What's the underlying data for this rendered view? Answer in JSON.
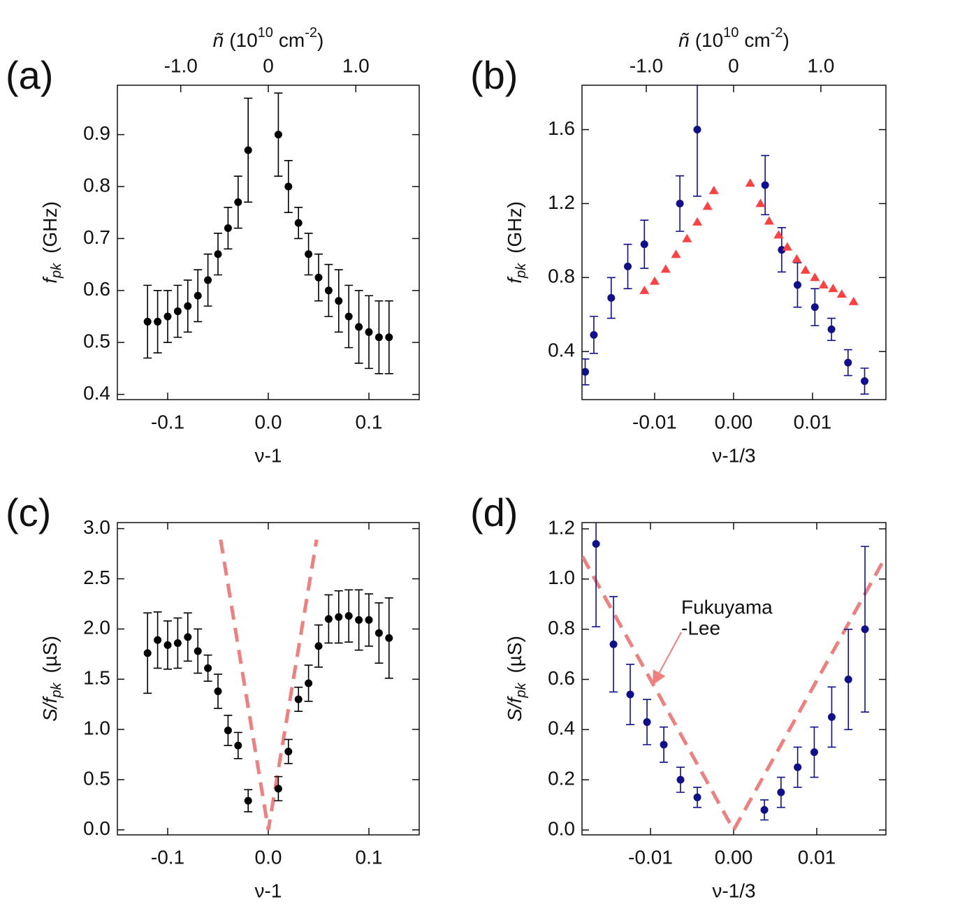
{
  "chart_data": [
    {
      "type": "scatter",
      "label": "(a)",
      "xlabel": "ν-1",
      "ylabel": {
        "main": "f",
        "sub": "pk",
        "unit": "(GHz)"
      },
      "x2label": {
        "symbol": "ñ",
        "open": "(10",
        "exp": "10",
        "unit": "cm",
        "unit_exp": "-2",
        "close": ")"
      },
      "xlim": [
        -0.15,
        0.15
      ],
      "ylim": [
        0.39,
        0.995
      ],
      "xticks": [
        -0.1,
        {
          "value": 0,
          "label": "0.0"
        },
        0.1
      ],
      "yticks": [
        0.4,
        0.5,
        0.6,
        0.7,
        0.8,
        0.9
      ],
      "x2lim": [
        -1.724,
        1.724
      ],
      "x2ticks": [
        {
          "value": -1,
          "label": "-1.0"
        },
        0,
        {
          "value": 1,
          "label": "1.0"
        }
      ],
      "series": [
        {
          "marker": "circle",
          "color": "#000000",
          "x": [
            -0.12,
            -0.11,
            -0.1,
            -0.09,
            -0.08,
            -0.07,
            -0.06,
            -0.05,
            -0.04,
            -0.03,
            -0.02,
            0.01,
            0.02,
            0.03,
            0.04,
            0.05,
            0.06,
            0.07,
            0.08,
            0.09,
            0.1,
            0.11,
            0.12
          ],
          "values": [
            0.54,
            0.54,
            0.55,
            0.56,
            0.57,
            0.59,
            0.62,
            0.67,
            0.72,
            0.77,
            0.87,
            0.9,
            0.8,
            0.73,
            0.67,
            0.625,
            0.6,
            0.58,
            0.55,
            0.53,
            0.52,
            0.51,
            0.51
          ],
          "errors": [
            0.07,
            0.06,
            0.05,
            0.05,
            0.05,
            0.05,
            0.05,
            0.04,
            0.04,
            0.05,
            0.1,
            0.08,
            0.05,
            0.03,
            0.04,
            0.045,
            0.05,
            0.06,
            0.06,
            0.07,
            0.07,
            0.07,
            0.07
          ]
        }
      ]
    },
    {
      "type": "scatter",
      "label": "(b)",
      "xlabel": "ν-1/3",
      "ylabel": {
        "main": "f",
        "sub": "pk",
        "unit": "(GHz)"
      },
      "x2label": {
        "symbol": "ñ",
        "open": "(10",
        "exp": "10",
        "unit": "cm",
        "unit_exp": "-2",
        "close": ")"
      },
      "xlim": [
        -0.0192,
        0.0193
      ],
      "ylim": [
        0.14,
        1.84
      ],
      "xticks": [
        -0.01,
        {
          "value": 0,
          "label": "0.00"
        },
        0.01
      ],
      "yticks": [
        0.4,
        0.8,
        1.2,
        1.6
      ],
      "x2lim": [
        -1.736,
        1.745
      ],
      "x2ticks": [
        {
          "value": -1,
          "label": "-1.0"
        },
        0,
        {
          "value": 1,
          "label": "1.0"
        }
      ],
      "series": [
        {
          "marker": "circle",
          "color": "#10108c",
          "x": [
            -0.0188,
            -0.0177,
            -0.0155,
            -0.0134,
            -0.0113,
            -0.0068,
            -0.0046,
            0.004,
            0.0061,
            0.0081,
            0.0103,
            0.0124,
            0.0145,
            0.0166
          ],
          "values": [
            0.29,
            0.49,
            0.69,
            0.86,
            0.98,
            1.2,
            1.6,
            1.3,
            0.95,
            0.76,
            0.64,
            0.52,
            0.34,
            0.24
          ],
          "errors": [
            0.07,
            0.1,
            0.11,
            0.12,
            0.13,
            0.15,
            0.36,
            0.16,
            0.12,
            0.12,
            0.1,
            0.06,
            0.07,
            0.07
          ]
        },
        {
          "marker": "triangle",
          "color": "#ff4040",
          "x": [
            -0.0113,
            -0.01,
            -0.0086,
            -0.0073,
            -0.0059,
            -0.0046,
            -0.0033,
            -0.0025,
            0.0021,
            0.0034,
            0.0045,
            0.0057,
            0.0068,
            0.008,
            0.0091,
            0.0103,
            0.0114,
            0.0126,
            0.0137,
            0.0152
          ],
          "values": [
            0.73,
            0.78,
            0.845,
            0.925,
            1.01,
            1.1,
            1.185,
            1.27,
            1.31,
            1.2,
            1.105,
            1.03,
            0.965,
            0.9,
            0.84,
            0.8,
            0.76,
            0.74,
            0.71,
            0.67
          ]
        }
      ]
    },
    {
      "type": "scatter",
      "label": "(c)",
      "xlabel": "ν-1",
      "ylabel": {
        "main": "S/f",
        "sub": "pk",
        "unit": "(µS)"
      },
      "xlim": [
        -0.15,
        0.15
      ],
      "ylim": [
        -0.05,
        3.06
      ],
      "xticks": [
        -0.1,
        {
          "value": 0,
          "label": "0.0"
        },
        0.1
      ],
      "yticks": [
        {
          "value": 0,
          "label": "0.0"
        },
        0.5,
        {
          "value": 1,
          "label": "1.0"
        },
        1.5,
        {
          "value": 2,
          "label": "2.0"
        },
        2.5,
        {
          "value": 3,
          "label": "3.0"
        }
      ],
      "series": [
        {
          "marker": "line",
          "color": "#f08080",
          "x": [
            -0.0474,
            0,
            0.048
          ],
          "values": [
            2.89,
            0,
            2.89
          ]
        },
        {
          "marker": "circle",
          "color": "#000000",
          "x": [
            -0.12,
            -0.11,
            -0.1,
            -0.09,
            -0.08,
            -0.07,
            -0.06,
            -0.05,
            -0.04,
            -0.03,
            -0.02,
            0.01,
            0.02,
            0.03,
            0.04,
            0.05,
            0.06,
            0.07,
            0.08,
            0.09,
            0.1,
            0.11,
            0.12
          ],
          "values": [
            1.76,
            1.89,
            1.84,
            1.86,
            1.92,
            1.78,
            1.61,
            1.38,
            0.99,
            0.84,
            0.29,
            0.41,
            0.78,
            1.3,
            1.46,
            1.83,
            2.1,
            2.12,
            2.13,
            2.09,
            2.09,
            1.96,
            1.91
          ],
          "errors": [
            0.4,
            0.28,
            0.24,
            0.25,
            0.24,
            0.22,
            0.13,
            0.17,
            0.15,
            0.13,
            0.11,
            0.12,
            0.12,
            0.12,
            0.18,
            0.21,
            0.24,
            0.26,
            0.26,
            0.3,
            0.26,
            0.3,
            0.4
          ]
        }
      ]
    },
    {
      "type": "scatter",
      "label": "(d)",
      "xlabel": "ν-1/3",
      "ylabel": {
        "main": "S/f",
        "sub": "pk",
        "unit": "(µS)"
      },
      "annotation": [
        "Fukuyama",
        "-Lee"
      ],
      "xlim": [
        -0.01824,
        0.01832
      ],
      "ylim": [
        -0.0195,
        1.225
      ],
      "xticks": [
        -0.01,
        {
          "value": 0,
          "label": "0.00"
        },
        0.01
      ],
      "yticks": [
        {
          "value": 0,
          "label": "0.0"
        },
        0.2,
        0.4,
        0.6,
        0.8,
        {
          "value": 1,
          "label": "1.0"
        },
        1.2
      ],
      "series": [
        {
          "marker": "line",
          "color": "#f08080",
          "x": [
            -0.0182,
            0,
            0.0183
          ],
          "values": [
            1.09,
            0,
            1.09
          ]
        },
        {
          "marker": "circle",
          "color": "#10108c",
          "x": [
            -0.01655,
            -0.01445,
            -0.01244,
            -0.01042,
            -0.0084,
            -0.00639,
            -0.00437,
            0.0037,
            0.0057,
            0.0077,
            0.0097,
            0.0118,
            0.0138,
            0.0158
          ],
          "values": [
            1.14,
            0.74,
            0.54,
            0.43,
            0.34,
            0.2,
            0.13,
            0.08,
            0.15,
            0.25,
            0.31,
            0.45,
            0.6,
            0.8
          ],
          "errors": [
            0.33,
            0.19,
            0.12,
            0.09,
            0.07,
            0.05,
            0.04,
            0.04,
            0.06,
            0.08,
            0.1,
            0.12,
            0.2,
            0.33
          ]
        }
      ]
    }
  ]
}
